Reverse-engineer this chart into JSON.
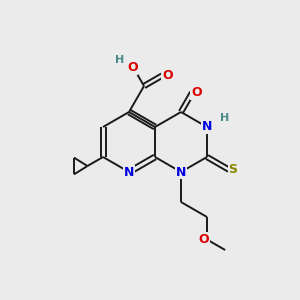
{
  "bg_color": "#ebebeb",
  "bond_color": "#1a1a1a",
  "colors": {
    "N": "#0000e0",
    "O": "#dd0000",
    "S": "#888800",
    "H_gray": "#4a8a8a",
    "C": "#1a1a1a"
  },
  "lw": 1.4,
  "fs": 9.0,
  "fs_small": 8.0,
  "bl": 30
}
